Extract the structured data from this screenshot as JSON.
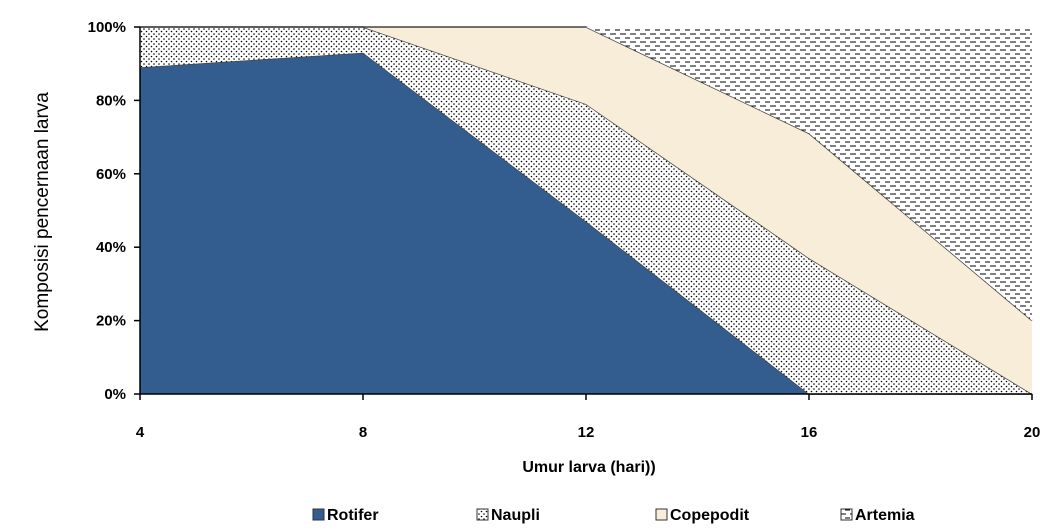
{
  "chart_data": {
    "type": "area",
    "stacked": "percent",
    "title": "",
    "xlabel": "Umur larva (hari))",
    "ylabel": "Komposisi pencernaan larva",
    "x": [
      4,
      8,
      12,
      16,
      20
    ],
    "x_ticks": [
      "4",
      "8",
      "12",
      "16",
      "20"
    ],
    "y_ticks": [
      "0%",
      "20%",
      "40%",
      "60%",
      "80%",
      "100%"
    ],
    "ylim": [
      0,
      100
    ],
    "grid": false,
    "legend_position": "bottom",
    "series": [
      {
        "name": "Rotifer",
        "values": [
          89,
          93,
          47,
          0,
          0
        ],
        "color": "#345d8f",
        "pattern": "solid"
      },
      {
        "name": "Naupli",
        "values": [
          11,
          7,
          32,
          37,
          0
        ],
        "color": "#ffffff",
        "pattern": "dots"
      },
      {
        "name": "Copepodit",
        "values": [
          0,
          0,
          21,
          34,
          20
        ],
        "color": "#f8edd9",
        "pattern": "solid"
      },
      {
        "name": "Artemia",
        "values": [
          0,
          0,
          0,
          29,
          80
        ],
        "color": "#ffffff",
        "pattern": "dashes"
      }
    ]
  }
}
